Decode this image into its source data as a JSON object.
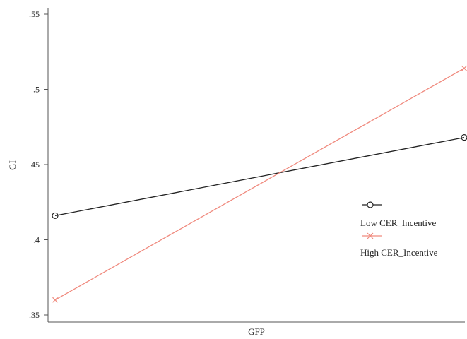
{
  "chart_data": {
    "type": "line",
    "title": "",
    "xlabel": "GFP",
    "ylabel": "GI",
    "ylim": [
      0.35,
      0.55
    ],
    "yticks": [
      ".35",
      ".4",
      ".45",
      ".5",
      ".55"
    ],
    "ytick_values": [
      0.35,
      0.4,
      0.45,
      0.5,
      0.55
    ],
    "x": [
      0,
      1
    ],
    "series": [
      {
        "name": "Low CER_Incentive",
        "values": [
          0.416,
          0.468
        ],
        "color": "#222222",
        "marker": "circle"
      },
      {
        "name": "High CER_Incentive",
        "values": [
          0.36,
          0.514
        ],
        "color": "#f08a7e",
        "marker": "x"
      }
    ],
    "grid": false,
    "legend": "right"
  }
}
